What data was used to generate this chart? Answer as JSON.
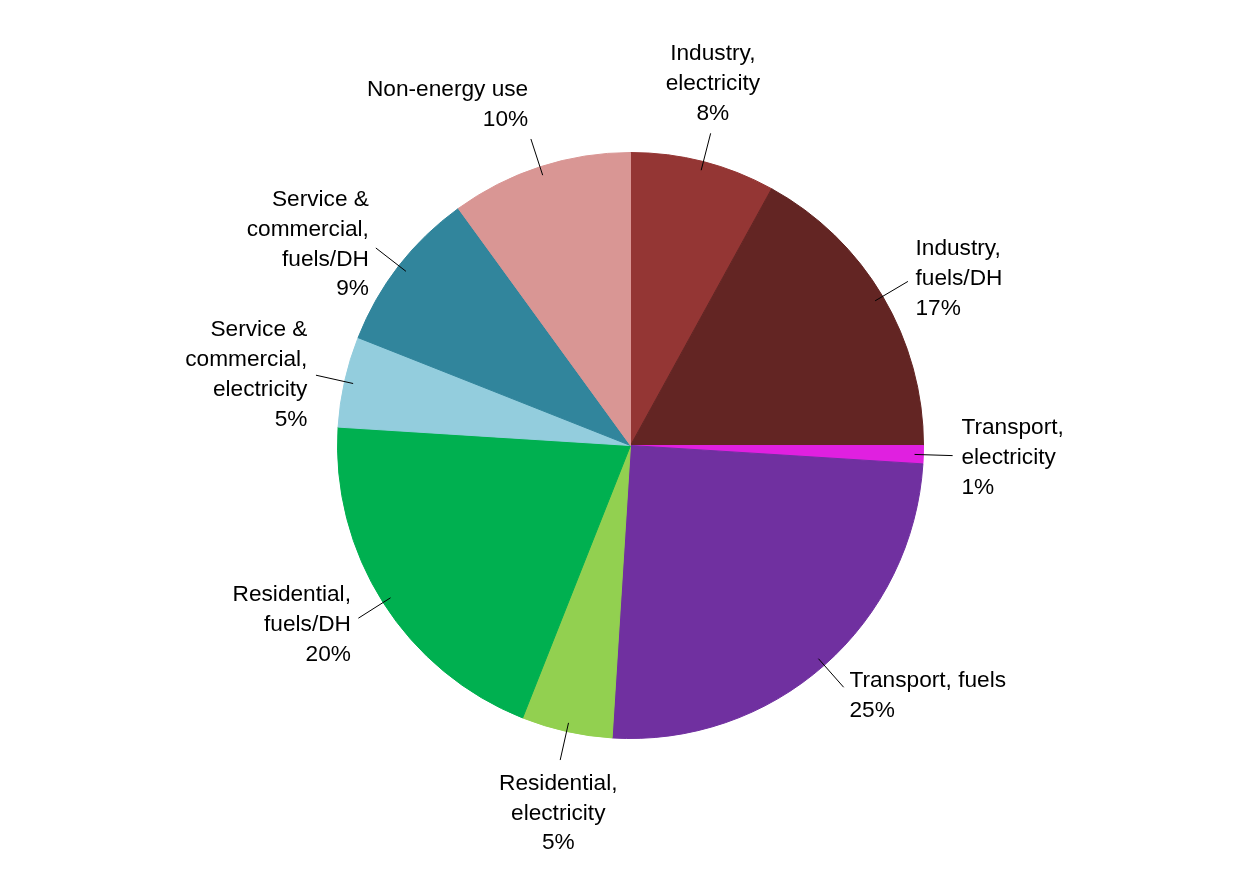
{
  "chart_data": {
    "type": "pie",
    "categories": [
      "Industry,\nelectricity",
      "Industry,\nfuels/DH",
      "Transport,\nelectricity",
      "Transport, fuels",
      "Residential,\nelectricity",
      "Residential,\nfuels/DH",
      "Service &\ncommercial,\nelectricity",
      "Service &\ncommercial,\nfuels/DH",
      "Non-energy use"
    ],
    "values": [
      8,
      17,
      1,
      25,
      5,
      20,
      5,
      9,
      10
    ],
    "value_labels": [
      "8%",
      "17%",
      "1%",
      "25%",
      "5%",
      "20%",
      "5%",
      "9%",
      "10%"
    ],
    "colors": [
      "#943634",
      "#632523",
      "#e020e0",
      "#7030a0",
      "#92d050",
      "#00b050",
      "#93cddd",
      "#31859c",
      "#d99694"
    ]
  }
}
